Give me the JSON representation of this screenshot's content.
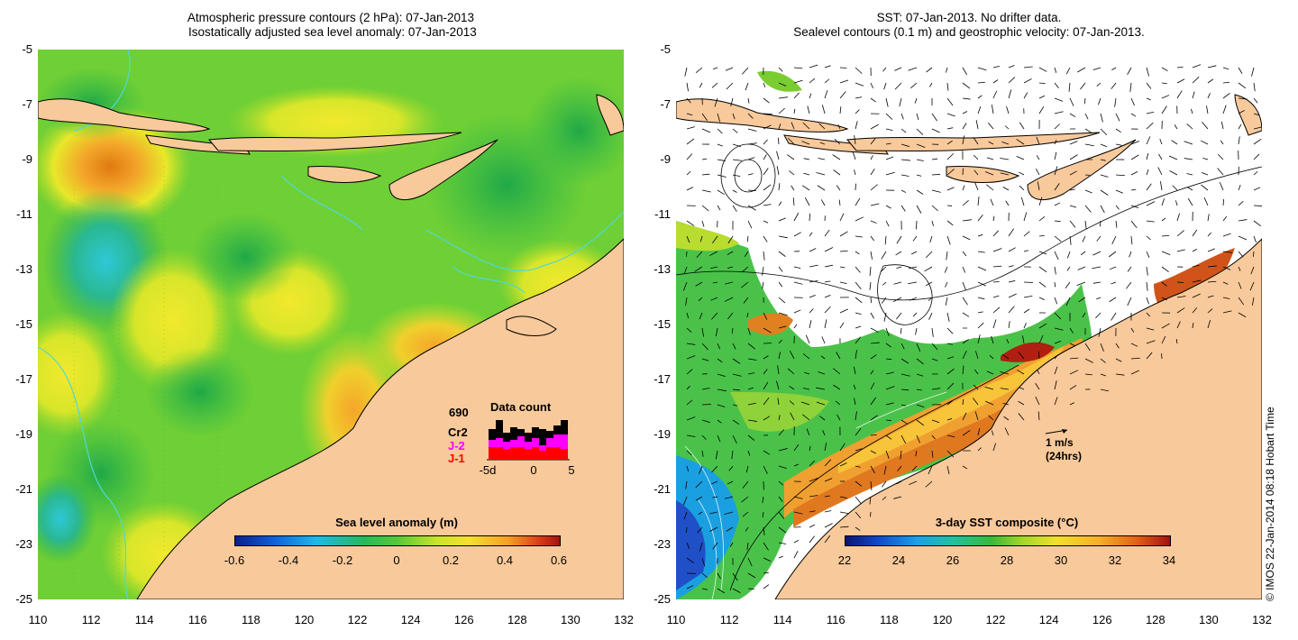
{
  "left_panel": {
    "title_line1": "Atmospheric pressure contours (2 hPa): 07-Jan-2013",
    "title_line2": " Isostatically adjusted sea level anomaly: 07-Jan-2013",
    "colorbar": {
      "label": "Sea level anomaly (m)",
      "ticks": [
        "-0.6",
        "-0.4",
        "-0.2",
        "0",
        "0.2",
        "0.4",
        "0.6"
      ],
      "range": [
        -0.6,
        0.6
      ]
    },
    "data_count": {
      "title": "Data count",
      "total": "690",
      "series_labels": [
        "Cr2",
        "J-2",
        "J-1"
      ],
      "series_colors": [
        "#000000",
        "#ff00ff",
        "#ff0000"
      ],
      "x_ticks": [
        "-5d",
        "0",
        "5"
      ]
    }
  },
  "right_panel": {
    "title_line1": "SST: 07-Jan-2013. No drifter data.",
    "title_line2": "Sealevel contours (0.1 m) and geostrophic velocity: 07-Jan-2013.",
    "colorbar": {
      "label": "3-day SST composite (°C)",
      "ticks": [
        "22",
        "24",
        "26",
        "28",
        "30",
        "32",
        "34"
      ],
      "range": [
        22,
        34
      ]
    },
    "velocity_scale": {
      "speed": "1 m/s",
      "period": "(24hrs)"
    }
  },
  "axes": {
    "lat_ticks": [
      "-5",
      "-7",
      "-9",
      "-11",
      "-13",
      "-15",
      "-17",
      "-19",
      "-21",
      "-23",
      "-25"
    ],
    "lon_ticks": [
      "110",
      "112",
      "114",
      "116",
      "118",
      "120",
      "122",
      "124",
      "126",
      "128",
      "130",
      "132"
    ],
    "lat_range": [
      -5,
      -25
    ],
    "lon_range": [
      110,
      132
    ]
  },
  "copyright": "© IMOS 22-Jan-2014 08:18 Hobart Time",
  "colors": {
    "land": "#f8c99a",
    "coast": "#000000",
    "contour": "#4ed8d8"
  }
}
